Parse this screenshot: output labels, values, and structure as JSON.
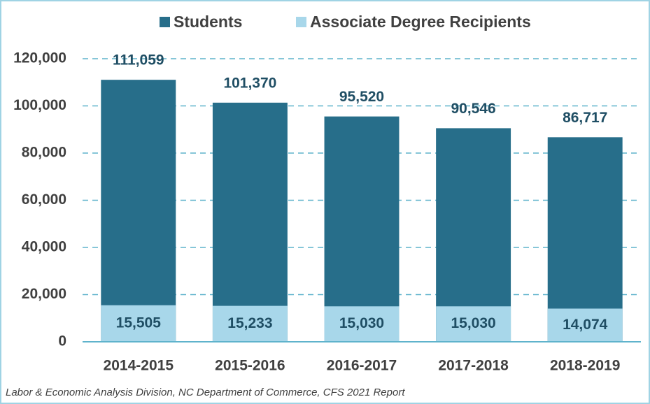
{
  "chart_data": {
    "type": "bar",
    "categories": [
      "2014-2015",
      "2015-2016",
      "2016-2017",
      "2017-2018",
      "2018-2019"
    ],
    "series": [
      {
        "name": "Students",
        "color": "#276e8a",
        "values": [
          111059,
          101370,
          95520,
          90546,
          86717
        ],
        "value_labels": [
          "111,059",
          "101,370",
          "95,520",
          "90,546",
          "86,717"
        ]
      },
      {
        "name": "Associate Degree Recipients",
        "color": "#a8d7ea",
        "values": [
          15505,
          15233,
          15030,
          15030,
          14074
        ],
        "value_labels": [
          "15,505",
          "15,233",
          "15,030",
          "15,030",
          "14,074"
        ]
      }
    ],
    "ylim": [
      0,
      120000
    ],
    "yticks": [
      0,
      {
        "value": 20000,
        "label": "20,000"
      },
      {
        "value": 40000,
        "label": "40,000"
      },
      {
        "value": 60000,
        "label": "60,000"
      },
      {
        "value": 80000,
        "label": "80,000"
      },
      {
        "value": 100000,
        "label": "100,000"
      },
      {
        "value": 120000,
        "label": "120,000"
      }
    ],
    "grid": true,
    "legend": "top",
    "source": "Labor & Economic Analysis Division, NC Department of Commerce, CFS 2021 Report"
  }
}
